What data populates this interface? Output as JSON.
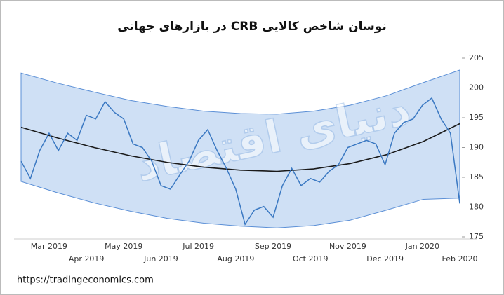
{
  "chart_data": {
    "type": "line",
    "title": "نوسان شاخص کالایی CRB در بازارهای جهانی",
    "source": "https://tradingeconomics.com",
    "watermark": "دنیای اقتصاد",
    "categories": [
      null,
      null,
      null,
      "Mar 2019",
      null,
      null,
      null,
      "Apr 2019",
      null,
      null,
      null,
      "May 2019",
      null,
      null,
      null,
      "Jun 2019",
      null,
      null,
      null,
      "Jul 2019",
      null,
      null,
      null,
      "Aug 2019",
      null,
      null,
      null,
      "Sep 2019",
      null,
      null,
      null,
      "Oct 2019",
      null,
      null,
      null,
      "Nov 2019",
      null,
      null,
      null,
      "Dec 2019",
      null,
      null,
      null,
      "Jan 2020",
      null,
      null,
      null,
      "Feb 2020"
    ],
    "series": [
      {
        "color": "#3a78c2",
        "values": [
          187.7,
          184.8,
          189.5,
          192.4,
          189.5,
          192.4,
          191.2,
          195.4,
          194.8,
          197.7,
          195.9,
          194.8,
          190.6,
          190,
          187.7,
          183.6,
          183,
          185.4,
          187.7,
          191.2,
          193,
          189.5,
          186.5,
          183,
          177.1,
          179.5,
          180.1,
          178.3,
          183.6,
          186.5,
          183.6,
          184.8,
          184.2,
          186,
          187.1,
          190,
          190.6,
          191.2,
          190.6,
          187.1,
          192.4,
          194.2,
          194.8,
          197.1,
          198.3,
          194.8,
          192.4,
          180.6
        ]
      }
    ],
    "trend": {
      "color": "#1a1a1a",
      "values": [
        193.4,
        191.6,
        190.0,
        188.6,
        187.5,
        186.7,
        186.2,
        186.0,
        186.4,
        187.3,
        188.8,
        191.0,
        194.0
      ]
    },
    "band": {
      "color": "#cfe0f5",
      "upper": [
        202.5,
        200.8,
        199.3,
        197.9,
        196.9,
        196.1,
        195.7,
        195.6,
        196.1,
        197.1,
        198.7,
        200.9,
        203.0
      ],
      "lower": [
        184.3,
        182.4,
        180.7,
        179.3,
        178.1,
        177.3,
        176.8,
        176.5,
        176.9,
        177.8,
        179.5,
        181.3,
        181.5
      ]
    },
    "ylim": [
      175,
      205
    ],
    "yticks": [
      175,
      180,
      185,
      190,
      195,
      200,
      205
    ]
  }
}
